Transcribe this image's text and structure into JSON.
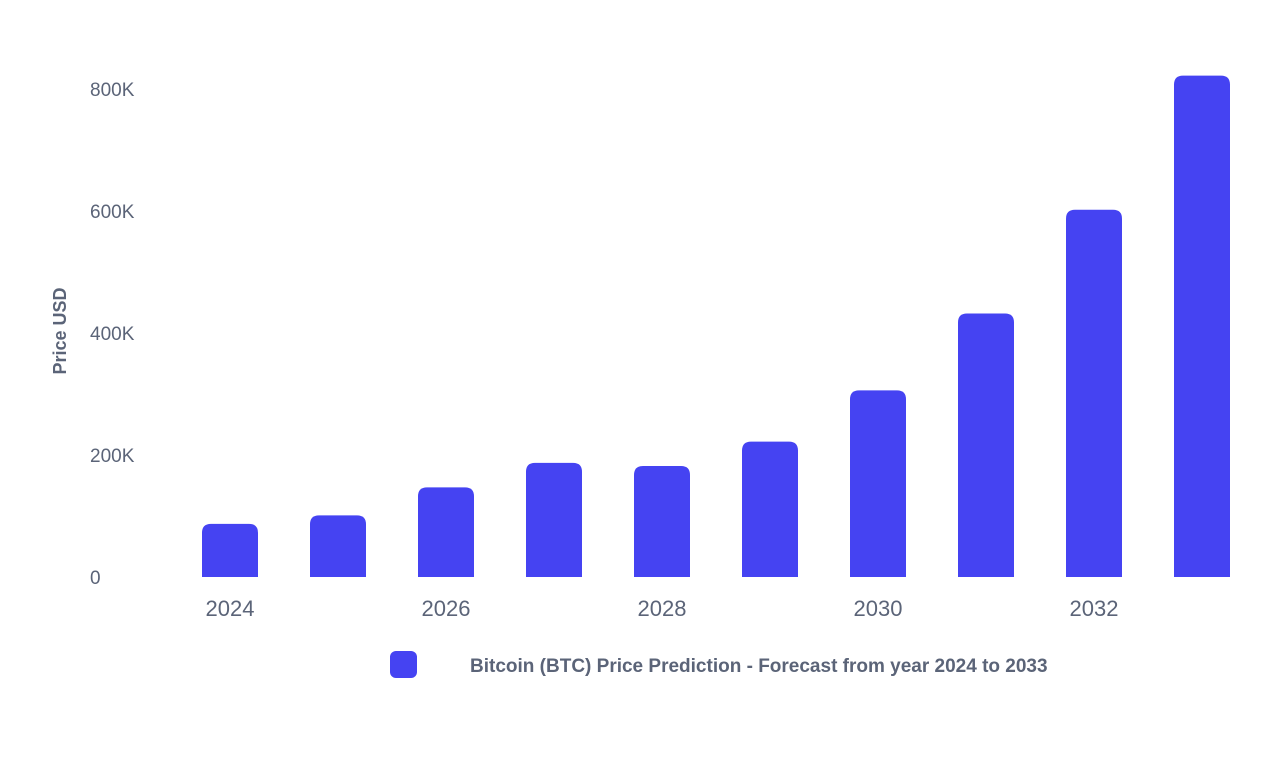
{
  "chart_data": {
    "type": "bar",
    "ylabel": "Price USD",
    "xlabel": "",
    "ylim": [
      0,
      800000
    ],
    "y_ticks": [
      0,
      200000,
      400000,
      600000,
      800000
    ],
    "y_tick_labels": [
      "0",
      "200K",
      "400K",
      "600K",
      "800K"
    ],
    "categories": [
      "2024",
      "2025",
      "2026",
      "2027",
      "2028",
      "2029",
      "2030",
      "2031",
      "2032",
      "2033"
    ],
    "x_tick_labels_shown": [
      "2024",
      "2026",
      "2028",
      "2030",
      "2032"
    ],
    "series": [
      {
        "name": "Bitcoin (BTC) Price Prediction - Forecast from year 2024 to 2033",
        "color": "#4543f2",
        "values": [
          87000,
          101000,
          147000,
          187000,
          182000,
          222000,
          306000,
          432000,
          602000,
          822000
        ]
      }
    ],
    "legend_position": "bottom-center",
    "grid": false
  }
}
